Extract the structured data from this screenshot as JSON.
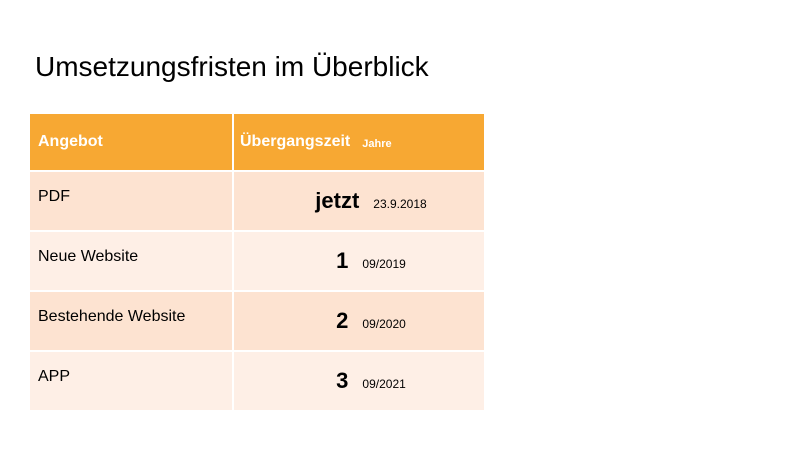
{
  "title": "Umsetzungsfristen im Überblick",
  "table": {
    "header": {
      "col1": "Angebot",
      "col2": "Übergangszeit",
      "col2_unit": "Jahre"
    },
    "rows": [
      {
        "label": "PDF",
        "value": "jetzt",
        "date": "23.9.2018"
      },
      {
        "label": "Neue Website",
        "value": "1",
        "date": "09/2019"
      },
      {
        "label": "Bestehende Website",
        "value": "2",
        "date": "09/2020"
      },
      {
        "label": "APP",
        "value": "3",
        "date": "09/2021"
      }
    ]
  },
  "colors": {
    "header_bg": "#f7a833",
    "row_dark": "#fde3d1",
    "row_light": "#feefe6"
  }
}
